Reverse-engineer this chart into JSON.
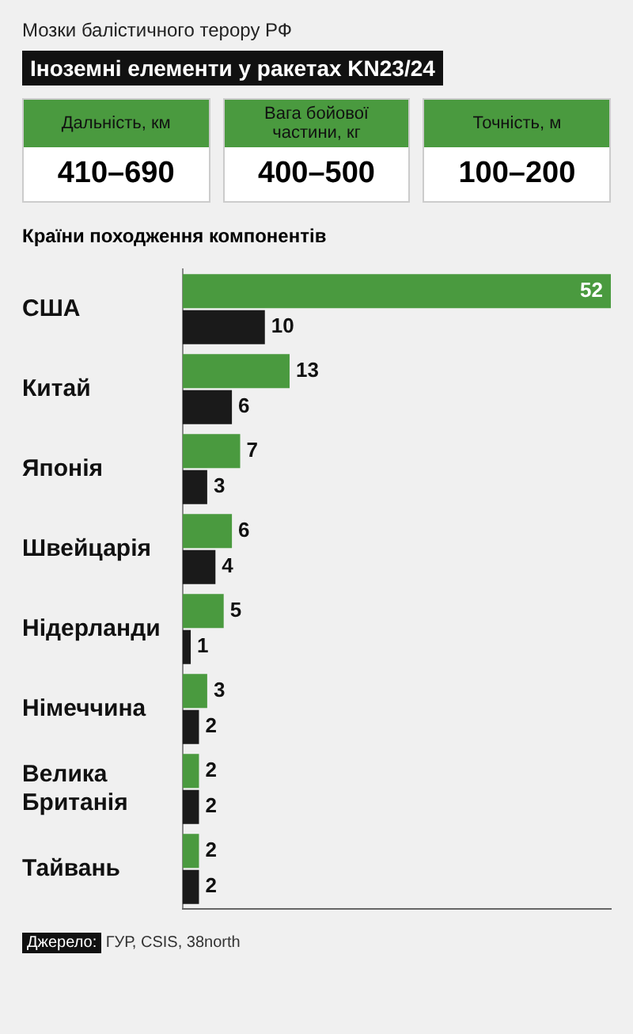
{
  "chart_data": [
    {
      "type": "other",
      "subtitle": "Мозки балістичного терору РФ",
      "title": "Іноземні елементи у ракетах KN23/24",
      "annotations": [
        "Дальність, км",
        "410–690",
        "Вага бойової частини, кг",
        "400–500",
        "Точність, м",
        "100–200"
      ]
    },
    {
      "type": "bar",
      "orientation": "horizontal",
      "title": "Країни походження компонентів",
      "categories": [
        "США",
        "Китай",
        "Японія",
        "Швейцарія",
        "Нідерланди",
        "Німеччина",
        "Велика Британія",
        "Тайвань"
      ],
      "series": [
        {
          "color": "#4a9a3f",
          "values": [
            52,
            13,
            7,
            6,
            5,
            3,
            2,
            2
          ]
        },
        {
          "color": "#1a1a1a",
          "values": [
            10,
            6,
            3,
            4,
            1,
            2,
            2,
            2
          ]
        }
      ],
      "data_labels": true,
      "tick_labels": "y",
      "grid": false,
      "legend": false,
      "annotations": [
        "Джерело: ГУР, CSIS, 38north"
      ]
    }
  ]
}
